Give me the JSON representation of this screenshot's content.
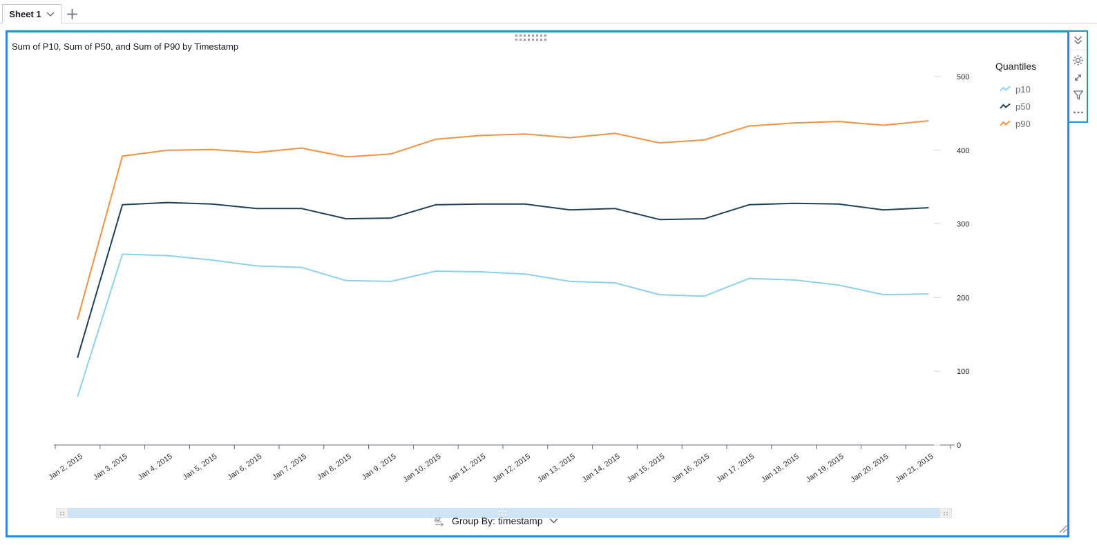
{
  "tab_bar": {
    "tabs": [
      {
        "label": "Sheet 1",
        "menu_icon": "chevron-down-icon"
      }
    ],
    "add_tab_icon": "plus-icon"
  },
  "visual": {
    "title": "Sum of P10, Sum of P50, and Sum of P90 by Timestamp",
    "menu_icons": [
      "collapse-double-chevron-icon",
      "settings-gear-icon",
      "maximize-icon",
      "filter-funnel-icon",
      "more-ellipsis-icon"
    ],
    "drag_handle_icon": "drag-dots-icon",
    "resize_icon": "resize-grip-icon",
    "controls": {
      "sort_icon": "sort-az-icon",
      "group_by_label": "Group By: timestamp",
      "dropdown_icon": "chevron-down-icon"
    }
  },
  "chart_data": {
    "type": "line",
    "title": "Sum of P10, Sum of P50, and Sum of P90 by Timestamp",
    "x": [
      "Jan 2, 2015",
      "Jan 3, 2015",
      "Jan 4, 2015",
      "Jan 5, 2015",
      "Jan 6, 2015",
      "Jan 7, 2015",
      "Jan 8, 2015",
      "Jan 9, 2015",
      "Jan 10, 2015",
      "Jan 11, 2015",
      "Jan 12, 2015",
      "Jan 13, 2015",
      "Jan 14, 2015",
      "Jan 15, 2015",
      "Jan 16, 2015",
      "Jan 17, 2015",
      "Jan 18, 2015",
      "Jan 19, 2015",
      "Jan 20, 2015",
      "Jan 21, 2015"
    ],
    "series": [
      {
        "name": "p10",
        "color": "#8CD1ED",
        "values": [
          66,
          259,
          257,
          251,
          243,
          241,
          223,
          222,
          236,
          235,
          232,
          222,
          220,
          204,
          202,
          226,
          224,
          217,
          204,
          205
        ]
      },
      {
        "name": "p50",
        "color": "#1E4054",
        "values": [
          119,
          326,
          329,
          327,
          321,
          321,
          307,
          308,
          326,
          327,
          327,
          319,
          321,
          306,
          307,
          326,
          328,
          327,
          319,
          322
        ]
      },
      {
        "name": "p90",
        "color": "#F5913E",
        "values": [
          171,
          392,
          400,
          401,
          397,
          403,
          391,
          395,
          415,
          420,
          422,
          417,
          423,
          410,
          414,
          433,
          437,
          439,
          434,
          440
        ]
      }
    ],
    "xlabel": "",
    "ylabel": "",
    "ylim": [
      0,
      500
    ],
    "yticks": [
      0,
      100,
      200,
      300,
      400,
      500
    ],
    "legend": {
      "title": "Quantiles",
      "position": "right"
    },
    "grid": false
  },
  "colors": {
    "accent": "#2b8cd2",
    "p10": "#8CD1ED",
    "p50": "#1E4054",
    "p90": "#F5913E",
    "scrollbar_track": "#CFE5F5",
    "axis": "#5f6b7a",
    "text_dark": "#16191F",
    "text_gray": "#687078"
  }
}
